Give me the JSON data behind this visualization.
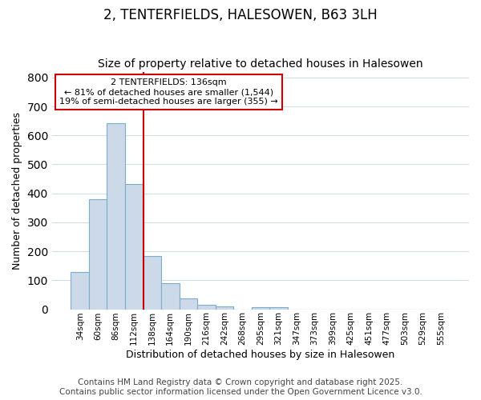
{
  "title": "2, TENTERFIELDS, HALESOWEN, B63 3LH",
  "subtitle": "Size of property relative to detached houses in Halesowen",
  "xlabel": "Distribution of detached houses by size in Halesowen",
  "ylabel": "Number of detached properties",
  "bar_color": "#ccd9e8",
  "bar_edge_color": "#7aadce",
  "background_color": "#ffffff",
  "grid_color": "#d0dce8",
  "categories": [
    "34sqm",
    "60sqm",
    "86sqm",
    "112sqm",
    "138sqm",
    "164sqm",
    "190sqm",
    "216sqm",
    "242sqm",
    "268sqm",
    "295sqm",
    "321sqm",
    "347sqm",
    "373sqm",
    "399sqm",
    "425sqm",
    "451sqm",
    "477sqm",
    "503sqm",
    "529sqm",
    "555sqm"
  ],
  "values": [
    128,
    381,
    643,
    431,
    184,
    90,
    37,
    16,
    10,
    0,
    6,
    7,
    0,
    0,
    0,
    0,
    0,
    0,
    0,
    0,
    0
  ],
  "vline_index": 4,
  "property_line_label": "2 TENTERFIELDS: 136sqm",
  "annotation_line1": "← 81% of detached houses are smaller (1,544)",
  "annotation_line2": "19% of semi-detached houses are larger (355) →",
  "annotation_box_color": "#ffffff",
  "annotation_box_edge_color": "#cc0000",
  "vline_color": "#cc0000",
  "ylim": [
    0,
    820
  ],
  "yticks": [
    0,
    100,
    200,
    300,
    400,
    500,
    600,
    700,
    800
  ],
  "footer1": "Contains HM Land Registry data © Crown copyright and database right 2025.",
  "footer2": "Contains public sector information licensed under the Open Government Licence v3.0.",
  "title_fontsize": 12,
  "subtitle_fontsize": 10,
  "footer_fontsize": 7.5
}
